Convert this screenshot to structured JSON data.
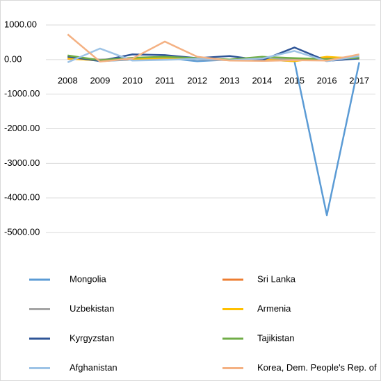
{
  "chart_data": {
    "type": "line",
    "categories": [
      "2008",
      "2009",
      "2010",
      "2011",
      "2012",
      "2013",
      "2014",
      "2015",
      "2016",
      "2017"
    ],
    "series": [
      {
        "name": "Mongolia",
        "color": "#5b9bd5",
        "values": [
          100,
          -50,
          0,
          50,
          -50,
          0,
          0,
          -50,
          -4500,
          -80
        ]
      },
      {
        "name": "Sri Lanka",
        "color": "#ed7d31",
        "values": [
          20,
          -20,
          10,
          20,
          10,
          -20,
          -10,
          -30,
          50,
          60
        ]
      },
      {
        "name": "Uzbekistan",
        "color": "#a5a5a5",
        "values": [
          50,
          0,
          30,
          40,
          10,
          0,
          10,
          20,
          0,
          30
        ]
      },
      {
        "name": "Armenia",
        "color": "#ffc000",
        "values": [
          30,
          -30,
          20,
          50,
          30,
          -10,
          0,
          -50,
          80,
          20
        ]
      },
      {
        "name": "Kyrgyzstan",
        "color": "#2f5597",
        "values": [
          80,
          -40,
          150,
          130,
          40,
          100,
          -20,
          350,
          -40,
          30
        ]
      },
      {
        "name": "Tajikistan",
        "color": "#70ad47",
        "values": [
          120,
          -20,
          50,
          80,
          40,
          0,
          80,
          40,
          10,
          50
        ]
      },
      {
        "name": "Afghanistan",
        "color": "#9dc3e6",
        "values": [
          -80,
          320,
          -30,
          -10,
          20,
          -20,
          30,
          250,
          -50,
          100
        ]
      },
      {
        "name": "Korea, Dem. People's Rep. of",
        "color": "#f4b183",
        "values": [
          730,
          -60,
          30,
          520,
          80,
          -30,
          -40,
          -20,
          -30,
          150
        ]
      }
    ],
    "ylim": [
      -5000,
      1000
    ],
    "yticks": [
      {
        "value": 1000,
        "label": "1000.00"
      },
      {
        "value": 0,
        "label": "0.00"
      },
      {
        "value": -1000,
        "label": "-1000.00"
      },
      {
        "value": -2000,
        "label": "-2000.00"
      },
      {
        "value": -3000,
        "label": "-3000.00"
      },
      {
        "value": -4000,
        "label": "-4000.00"
      },
      {
        "value": -5000,
        "label": "-5000.00"
      }
    ],
    "grid": true
  }
}
